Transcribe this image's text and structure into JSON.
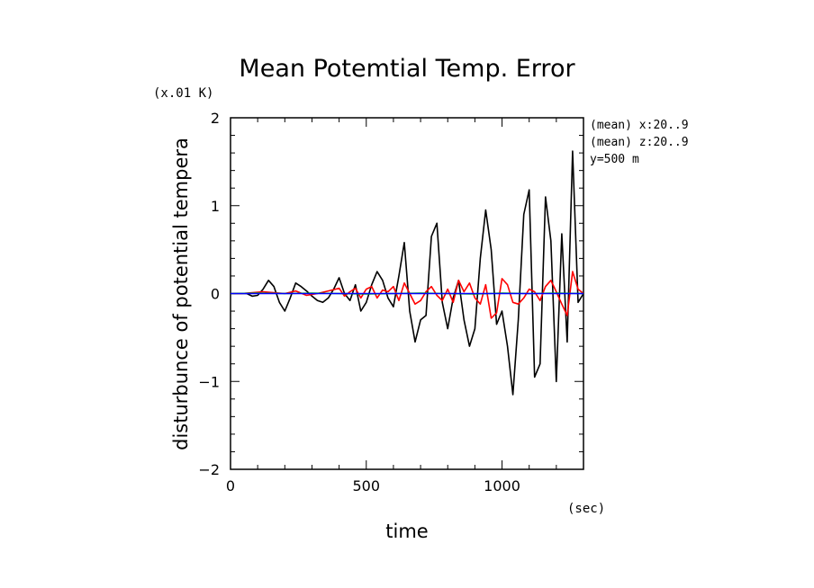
{
  "chart_data": {
    "type": "line",
    "title": "Mean Potemtial Temp. Error",
    "ylabel": "disturbunce of potential tempera",
    "y_unit": "(x.01 K)",
    "xlabel": "time",
    "x_unit": "(sec)",
    "xlim": [
      0,
      1300
    ],
    "ylim": [
      -2,
      2
    ],
    "x_ticks": [
      0,
      500,
      1000
    ],
    "x_tick_labels": [
      "0",
      "500",
      "1000"
    ],
    "y_ticks": [
      -2,
      -1,
      0,
      1,
      2
    ],
    "y_tick_labels": [
      "−2",
      "−1",
      "0",
      "1",
      "2"
    ],
    "annotations": [
      "(mean) x:20..9",
      "(mean) z:20..9",
      "y=500 m"
    ],
    "grid": false,
    "series": [
      {
        "color": "#000000",
        "x": [
          0,
          20,
          40,
          60,
          80,
          100,
          120,
          140,
          160,
          180,
          200,
          220,
          240,
          260,
          280,
          300,
          320,
          340,
          360,
          380,
          400,
          420,
          440,
          460,
          480,
          500,
          520,
          540,
          560,
          580,
          600,
          620,
          640,
          660,
          680,
          700,
          720,
          740,
          760,
          780,
          800,
          820,
          840,
          860,
          880,
          900,
          920,
          940,
          960,
          980,
          1000,
          1020,
          1040,
          1060,
          1080,
          1100,
          1120,
          1140,
          1160,
          1180,
          1200,
          1220,
          1240,
          1260,
          1280,
          1300
        ],
        "y": [
          0,
          0,
          0,
          0,
          -0.03,
          -0.02,
          0.05,
          0.15,
          0.08,
          -0.1,
          -0.2,
          -0.05,
          0.12,
          0.08,
          0.03,
          -0.03,
          -0.08,
          -0.1,
          -0.05,
          0.05,
          0.18,
          0,
          -0.08,
          0.1,
          -0.2,
          -0.1,
          0.1,
          0.25,
          0.15,
          -0.05,
          -0.15,
          0.2,
          0.58,
          -0.2,
          -0.55,
          -0.3,
          -0.25,
          0.65,
          0.8,
          -0.1,
          -0.4,
          -0.05,
          0.15,
          -0.3,
          -0.6,
          -0.4,
          0.4,
          0.95,
          0.5,
          -0.35,
          -0.2,
          -0.6,
          -1.15,
          -0.3,
          0.9,
          1.18,
          -0.95,
          -0.8,
          1.1,
          0.6,
          -1.0,
          0.68,
          -0.55,
          1.62,
          -0.1,
          0.0
        ]
      },
      {
        "color": "#ff0000",
        "x": [
          0,
          40,
          80,
          120,
          160,
          200,
          240,
          280,
          320,
          360,
          400,
          420,
          440,
          460,
          480,
          500,
          520,
          540,
          560,
          580,
          600,
          620,
          640,
          660,
          680,
          700,
          720,
          740,
          760,
          780,
          800,
          820,
          840,
          860,
          880,
          900,
          920,
          940,
          960,
          980,
          1000,
          1020,
          1040,
          1060,
          1080,
          1100,
          1120,
          1140,
          1160,
          1180,
          1200,
          1220,
          1240,
          1260,
          1280,
          1300
        ],
        "y": [
          0,
          0,
          0.01,
          0.02,
          0.01,
          0,
          0.03,
          -0.02,
          0,
          0.03,
          0.06,
          -0.03,
          0.02,
          0.06,
          -0.05,
          0.05,
          0.08,
          -0.05,
          0.04,
          0.02,
          0.08,
          -0.08,
          0.12,
          0,
          -0.12,
          -0.08,
          0.02,
          0.08,
          -0.02,
          -0.08,
          0.05,
          -0.1,
          0.15,
          0.02,
          0.12,
          -0.05,
          -0.12,
          0.1,
          -0.28,
          -0.22,
          0.17,
          0.1,
          -0.1,
          -0.12,
          -0.05,
          0.05,
          0.02,
          -0.08,
          0.08,
          0.15,
          0.02,
          -0.12,
          -0.25,
          0.25,
          0.05,
          0.0
        ]
      },
      {
        "color": "#00c000",
        "x": [
          0,
          100,
          200,
          300,
          400,
          500,
          600,
          700,
          800,
          900,
          1000,
          1100,
          1200,
          1300
        ],
        "y": [
          0,
          0.005,
          0,
          0.005,
          0,
          -0.005,
          0,
          0.005,
          0,
          -0.005,
          0.005,
          0,
          0.005,
          0
        ]
      },
      {
        "color": "#0000ff",
        "x": [
          0,
          1300
        ],
        "y": [
          0,
          0
        ]
      }
    ]
  }
}
